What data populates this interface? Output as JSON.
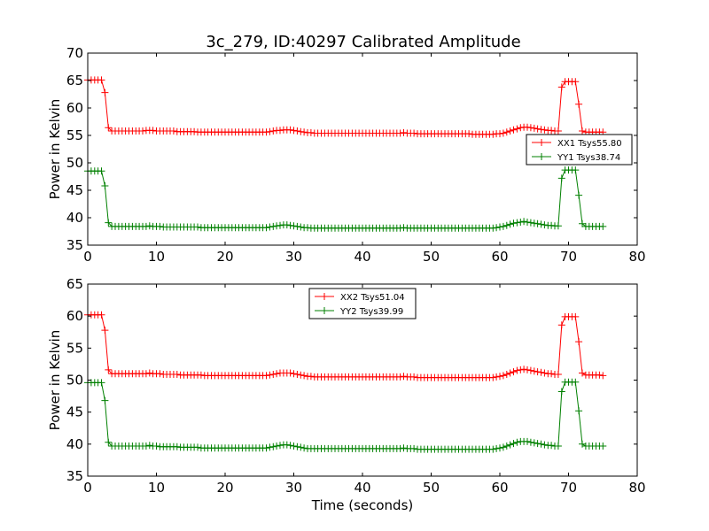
{
  "page": {
    "title": "3c_279, ID:40297 Calibrated Amplitude"
  },
  "chart_data": [
    {
      "type": "line",
      "title": "3c_279, ID:40297 Calibrated Amplitude",
      "xlabel": "",
      "ylabel": "Power in Kelvin",
      "xlim": [
        0,
        80
      ],
      "ylim": [
        35,
        70
      ],
      "xticks": [
        0,
        10,
        20,
        30,
        40,
        50,
        60,
        70,
        80
      ],
      "yticks": [
        35,
        40,
        45,
        50,
        55,
        60,
        65,
        70
      ],
      "grid": false,
      "legend_position": "center-right",
      "x": [
        0.0,
        0.5,
        1.0,
        1.5,
        2.0,
        2.5,
        3.0,
        3.5,
        4.0,
        4.5,
        5.0,
        5.5,
        6.0,
        6.5,
        7.0,
        7.5,
        8.0,
        8.5,
        9.0,
        9.5,
        10.0,
        10.5,
        11.0,
        11.5,
        12.0,
        12.5,
        13.0,
        13.5,
        14.0,
        14.5,
        15.0,
        15.5,
        16.0,
        16.5,
        17.0,
        17.5,
        18.0,
        18.5,
        19.0,
        19.5,
        20.0,
        20.5,
        21.0,
        21.5,
        22.0,
        22.5,
        23.0,
        23.5,
        24.0,
        24.5,
        25.0,
        25.5,
        26.0,
        26.5,
        27.0,
        27.5,
        28.0,
        28.5,
        29.0,
        29.5,
        30.0,
        30.5,
        31.0,
        31.5,
        32.0,
        32.5,
        33.0,
        33.5,
        34.0,
        34.5,
        35.0,
        35.5,
        36.0,
        36.5,
        37.0,
        37.5,
        38.0,
        38.5,
        39.0,
        39.5,
        40.0,
        40.5,
        41.0,
        41.5,
        42.0,
        42.5,
        43.0,
        43.5,
        44.0,
        44.5,
        45.0,
        45.5,
        46.0,
        46.5,
        47.0,
        47.5,
        48.0,
        48.5,
        49.0,
        49.5,
        50.0,
        50.5,
        51.0,
        51.5,
        52.0,
        52.5,
        53.0,
        53.5,
        54.0,
        54.5,
        55.0,
        55.5,
        56.0,
        56.5,
        57.0,
        57.5,
        58.0,
        58.5,
        59.0,
        59.5,
        60.0,
        60.5,
        61.0,
        61.5,
        62.0,
        62.5,
        63.0,
        63.5,
        64.0,
        64.5,
        65.0,
        65.5,
        66.0,
        66.5,
        67.0,
        67.5,
        68.0,
        68.5,
        69.0,
        69.5,
        70.0,
        70.5,
        71.0,
        71.5,
        72.0,
        72.5,
        73.0,
        73.5,
        74.0,
        74.5,
        75.0
      ],
      "series": [
        {
          "name": "XX1 Tsys55.80",
          "color": "#ff0000",
          "values": [
            65.1,
            65.1,
            65.1,
            65.1,
            65.1,
            62.8,
            56.4,
            55.8,
            55.8,
            55.8,
            55.8,
            55.8,
            55.8,
            55.8,
            55.8,
            55.8,
            55.8,
            55.9,
            55.9,
            55.9,
            55.8,
            55.8,
            55.8,
            55.8,
            55.8,
            55.8,
            55.7,
            55.7,
            55.7,
            55.7,
            55.7,
            55.7,
            55.6,
            55.6,
            55.6,
            55.6,
            55.6,
            55.6,
            55.6,
            55.6,
            55.6,
            55.6,
            55.6,
            55.6,
            55.6,
            55.6,
            55.6,
            55.6,
            55.6,
            55.6,
            55.6,
            55.6,
            55.6,
            55.7,
            55.8,
            55.9,
            55.9,
            56.0,
            56.0,
            56.0,
            55.9,
            55.8,
            55.7,
            55.6,
            55.5,
            55.5,
            55.4,
            55.4,
            55.4,
            55.4,
            55.4,
            55.4,
            55.4,
            55.4,
            55.4,
            55.4,
            55.4,
            55.4,
            55.4,
            55.4,
            55.4,
            55.4,
            55.4,
            55.4,
            55.4,
            55.4,
            55.4,
            55.4,
            55.4,
            55.4,
            55.4,
            55.4,
            55.5,
            55.4,
            55.4,
            55.4,
            55.3,
            55.3,
            55.3,
            55.3,
            55.3,
            55.3,
            55.3,
            55.3,
            55.3,
            55.3,
            55.3,
            55.3,
            55.3,
            55.3,
            55.3,
            55.3,
            55.2,
            55.2,
            55.2,
            55.2,
            55.2,
            55.2,
            55.2,
            55.3,
            55.3,
            55.4,
            55.6,
            55.8,
            56.0,
            56.2,
            56.4,
            56.5,
            56.5,
            56.4,
            56.3,
            56.2,
            56.1,
            56.0,
            55.9,
            55.9,
            55.8,
            55.8,
            63.8,
            64.8,
            64.8,
            64.8,
            64.8,
            60.7,
            55.8,
            55.6,
            55.6,
            55.6,
            55.6,
            55.6,
            55.6
          ]
        },
        {
          "name": "YY1 Tsys38.74",
          "color": "#008000",
          "values": [
            48.5,
            48.5,
            48.5,
            48.5,
            48.5,
            45.8,
            39.1,
            38.4,
            38.4,
            38.4,
            38.4,
            38.4,
            38.4,
            38.4,
            38.4,
            38.4,
            38.4,
            38.4,
            38.5,
            38.4,
            38.4,
            38.4,
            38.3,
            38.3,
            38.3,
            38.3,
            38.3,
            38.3,
            38.3,
            38.3,
            38.3,
            38.3,
            38.3,
            38.2,
            38.2,
            38.2,
            38.2,
            38.2,
            38.2,
            38.2,
            38.2,
            38.2,
            38.2,
            38.2,
            38.2,
            38.2,
            38.2,
            38.2,
            38.2,
            38.2,
            38.2,
            38.2,
            38.2,
            38.3,
            38.4,
            38.5,
            38.6,
            38.7,
            38.7,
            38.6,
            38.5,
            38.4,
            38.3,
            38.2,
            38.2,
            38.1,
            38.1,
            38.1,
            38.1,
            38.1,
            38.1,
            38.1,
            38.1,
            38.1,
            38.1,
            38.1,
            38.1,
            38.1,
            38.1,
            38.1,
            38.1,
            38.1,
            38.1,
            38.1,
            38.1,
            38.1,
            38.1,
            38.1,
            38.1,
            38.1,
            38.1,
            38.1,
            38.2,
            38.1,
            38.1,
            38.1,
            38.1,
            38.1,
            38.1,
            38.1,
            38.1,
            38.1,
            38.1,
            38.1,
            38.1,
            38.1,
            38.1,
            38.1,
            38.1,
            38.1,
            38.1,
            38.1,
            38.1,
            38.1,
            38.1,
            38.1,
            38.1,
            38.1,
            38.1,
            38.2,
            38.3,
            38.4,
            38.6,
            38.8,
            39.0,
            39.1,
            39.2,
            39.3,
            39.2,
            39.1,
            39.0,
            38.9,
            38.8,
            38.7,
            38.6,
            38.6,
            38.5,
            38.5,
            47.2,
            48.7,
            48.7,
            48.7,
            48.7,
            44.1,
            38.9,
            38.4,
            38.4,
            38.4,
            38.4,
            38.4,
            38.4
          ]
        }
      ]
    },
    {
      "type": "line",
      "title": "",
      "xlabel": "Time (seconds)",
      "ylabel": "Power in Kelvin",
      "xlim": [
        0,
        80
      ],
      "ylim": [
        35,
        65
      ],
      "xticks": [
        0,
        10,
        20,
        30,
        40,
        50,
        60,
        70,
        80
      ],
      "yticks": [
        35,
        40,
        45,
        50,
        55,
        60,
        65
      ],
      "grid": false,
      "legend_position": "top-center",
      "x": [
        0.0,
        0.5,
        1.0,
        1.5,
        2.0,
        2.5,
        3.0,
        3.5,
        4.0,
        4.5,
        5.0,
        5.5,
        6.0,
        6.5,
        7.0,
        7.5,
        8.0,
        8.5,
        9.0,
        9.5,
        10.0,
        10.5,
        11.0,
        11.5,
        12.0,
        12.5,
        13.0,
        13.5,
        14.0,
        14.5,
        15.0,
        15.5,
        16.0,
        16.5,
        17.0,
        17.5,
        18.0,
        18.5,
        19.0,
        19.5,
        20.0,
        20.5,
        21.0,
        21.5,
        22.0,
        22.5,
        23.0,
        23.5,
        24.0,
        24.5,
        25.0,
        25.5,
        26.0,
        26.5,
        27.0,
        27.5,
        28.0,
        28.5,
        29.0,
        29.5,
        30.0,
        30.5,
        31.0,
        31.5,
        32.0,
        32.5,
        33.0,
        33.5,
        34.0,
        34.5,
        35.0,
        35.5,
        36.0,
        36.5,
        37.0,
        37.5,
        38.0,
        38.5,
        39.0,
        39.5,
        40.0,
        40.5,
        41.0,
        41.5,
        42.0,
        42.5,
        43.0,
        43.5,
        44.0,
        44.5,
        45.0,
        45.5,
        46.0,
        46.5,
        47.0,
        47.5,
        48.0,
        48.5,
        49.0,
        49.5,
        50.0,
        50.5,
        51.0,
        51.5,
        52.0,
        52.5,
        53.0,
        53.5,
        54.0,
        54.5,
        55.0,
        55.5,
        56.0,
        56.5,
        57.0,
        57.5,
        58.0,
        58.5,
        59.0,
        59.5,
        60.0,
        60.5,
        61.0,
        61.5,
        62.0,
        62.5,
        63.0,
        63.5,
        64.0,
        64.5,
        65.0,
        65.5,
        66.0,
        66.5,
        67.0,
        67.5,
        68.0,
        68.5,
        69.0,
        69.5,
        70.0,
        70.5,
        71.0,
        71.5,
        72.0,
        72.5,
        73.0,
        73.5,
        74.0,
        74.5,
        75.0
      ],
      "series": [
        {
          "name": "XX2 Tsys51.04",
          "color": "#ff0000",
          "values": [
            60.2,
            60.2,
            60.2,
            60.2,
            60.2,
            57.8,
            51.6,
            51.0,
            51.0,
            51.0,
            51.0,
            51.0,
            51.0,
            51.0,
            51.0,
            51.0,
            51.0,
            51.0,
            51.1,
            51.0,
            51.0,
            51.0,
            50.9,
            50.9,
            50.9,
            50.9,
            50.9,
            50.8,
            50.8,
            50.8,
            50.8,
            50.8,
            50.8,
            50.8,
            50.7,
            50.7,
            50.7,
            50.7,
            50.7,
            50.7,
            50.7,
            50.7,
            50.7,
            50.7,
            50.7,
            50.7,
            50.7,
            50.7,
            50.7,
            50.7,
            50.7,
            50.7,
            50.7,
            50.8,
            50.9,
            51.0,
            51.1,
            51.1,
            51.1,
            51.1,
            51.0,
            50.9,
            50.8,
            50.7,
            50.6,
            50.6,
            50.5,
            50.5,
            50.5,
            50.5,
            50.5,
            50.5,
            50.5,
            50.5,
            50.5,
            50.5,
            50.5,
            50.5,
            50.5,
            50.5,
            50.5,
            50.5,
            50.5,
            50.5,
            50.5,
            50.5,
            50.5,
            50.5,
            50.5,
            50.5,
            50.5,
            50.5,
            50.6,
            50.5,
            50.5,
            50.5,
            50.4,
            50.4,
            50.4,
            50.4,
            50.4,
            50.4,
            50.4,
            50.4,
            50.4,
            50.4,
            50.4,
            50.4,
            50.4,
            50.4,
            50.4,
            50.4,
            50.4,
            50.4,
            50.4,
            50.4,
            50.4,
            50.4,
            50.4,
            50.5,
            50.6,
            50.7,
            50.9,
            51.1,
            51.3,
            51.5,
            51.6,
            51.7,
            51.6,
            51.5,
            51.4,
            51.3,
            51.2,
            51.1,
            51.0,
            51.0,
            50.9,
            50.9,
            58.6,
            59.9,
            59.9,
            59.9,
            59.9,
            56.0,
            51.1,
            50.8,
            50.8,
            50.8,
            50.8,
            50.8,
            50.7
          ]
        },
        {
          "name": "YY2 Tsys39.99",
          "color": "#008000",
          "values": [
            49.6,
            49.6,
            49.6,
            49.6,
            49.6,
            46.8,
            40.3,
            39.7,
            39.7,
            39.7,
            39.7,
            39.7,
            39.7,
            39.7,
            39.7,
            39.7,
            39.7,
            39.7,
            39.8,
            39.7,
            39.7,
            39.6,
            39.6,
            39.6,
            39.6,
            39.6,
            39.6,
            39.5,
            39.5,
            39.5,
            39.5,
            39.5,
            39.5,
            39.4,
            39.4,
            39.4,
            39.4,
            39.4,
            39.4,
            39.4,
            39.4,
            39.4,
            39.4,
            39.4,
            39.4,
            39.4,
            39.4,
            39.4,
            39.4,
            39.4,
            39.4,
            39.4,
            39.4,
            39.5,
            39.6,
            39.7,
            39.8,
            39.9,
            39.9,
            39.8,
            39.7,
            39.6,
            39.5,
            39.4,
            39.3,
            39.3,
            39.3,
            39.3,
            39.3,
            39.3,
            39.3,
            39.3,
            39.3,
            39.3,
            39.3,
            39.3,
            39.3,
            39.3,
            39.3,
            39.3,
            39.3,
            39.3,
            39.3,
            39.3,
            39.3,
            39.3,
            39.3,
            39.3,
            39.3,
            39.3,
            39.3,
            39.3,
            39.4,
            39.3,
            39.3,
            39.3,
            39.2,
            39.2,
            39.2,
            39.2,
            39.2,
            39.2,
            39.2,
            39.2,
            39.2,
            39.2,
            39.2,
            39.2,
            39.2,
            39.2,
            39.2,
            39.2,
            39.2,
            39.2,
            39.2,
            39.2,
            39.2,
            39.2,
            39.2,
            39.3,
            39.4,
            39.5,
            39.7,
            39.9,
            40.1,
            40.3,
            40.4,
            40.4,
            40.4,
            40.3,
            40.2,
            40.1,
            40.0,
            39.9,
            39.8,
            39.8,
            39.7,
            39.7,
            48.2,
            49.7,
            49.7,
            49.7,
            49.7,
            45.2,
            40.0,
            39.7,
            39.7,
            39.7,
            39.7,
            39.7,
            39.7
          ]
        }
      ]
    }
  ]
}
